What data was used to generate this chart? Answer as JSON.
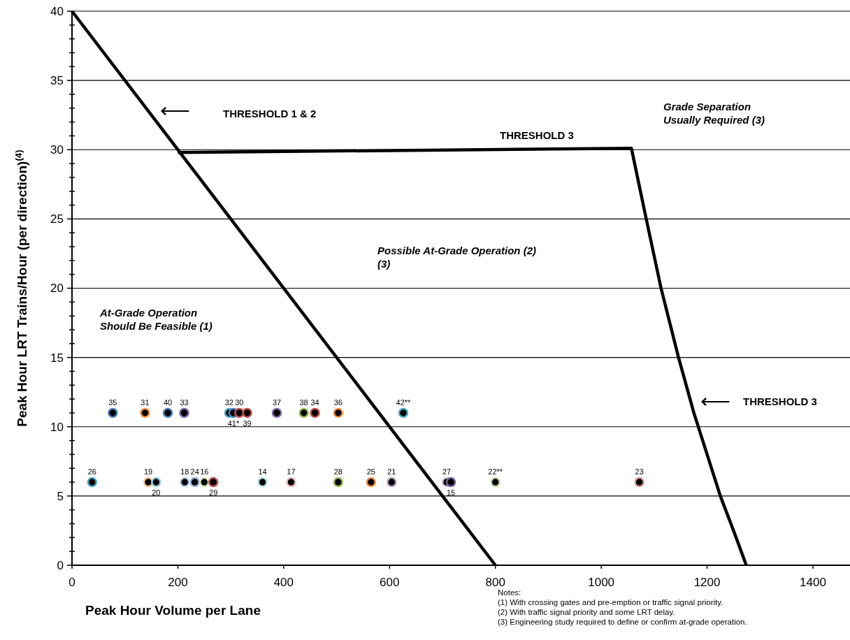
{
  "chart_data": {
    "type": "scatter",
    "xlabel": "Peak Hour Volume per Lane",
    "ylabel": "Peak Hour LRT Trains/Hour  (per direction)$^{(4)}$",
    "xlim": [
      0,
      1470
    ],
    "ylim": [
      0,
      40
    ],
    "xticks": [
      0,
      200,
      400,
      600,
      800,
      1000,
      1200,
      1400
    ],
    "yticks": [
      0,
      {
        "value": 1,
        "label": null
      },
      {
        "value": 2,
        "label": null
      },
      {
        "value": 3,
        "label": null
      },
      {
        "value": 4,
        "label": null
      },
      5,
      {
        "value": 6,
        "label": null
      },
      {
        "value": 7,
        "label": null
      },
      {
        "value": 8,
        "label": null
      },
      {
        "value": 9,
        "label": null
      },
      10,
      {
        "value": 11,
        "label": null
      },
      {
        "value": 12,
        "label": null
      },
      {
        "value": 13,
        "label": null
      },
      {
        "value": 14,
        "label": null
      },
      15,
      {
        "value": 16,
        "label": null
      },
      {
        "value": 17,
        "label": null
      },
      {
        "value": 18,
        "label": null
      },
      {
        "value": 19,
        "label": null
      },
      20,
      {
        "value": 21,
        "label": null
      },
      {
        "value": 22,
        "label": null
      },
      {
        "value": 23,
        "label": null
      },
      {
        "value": 24,
        "label": null
      },
      25,
      {
        "value": 26,
        "label": null
      },
      {
        "value": 27,
        "label": null
      },
      {
        "value": 28,
        "label": null
      },
      {
        "value": 29,
        "label": null
      },
      30,
      {
        "value": 31,
        "label": null
      },
      {
        "value": 32,
        "label": null
      },
      {
        "value": 33,
        "label": null
      },
      {
        "value": 34,
        "label": null
      },
      35,
      {
        "value": 36,
        "label": null
      },
      {
        "value": 37,
        "label": null
      },
      {
        "value": 38,
        "label": null
      },
      {
        "value": 39,
        "label": null
      },
      40
    ],
    "grid": "y",
    "series": [
      {
        "type": "line",
        "color": "#000000",
        "marker": "none",
        "x": [
          0,
          800
        ],
        "values": [
          40,
          0
        ]
      },
      {
        "type": "line",
        "color": "#000000",
        "marker": "none",
        "x": [
          200,
          1057,
          1085,
          1113,
          1146,
          1175,
          1200,
          1225,
          1250,
          1274
        ],
        "values": [
          29.8,
          30.1,
          25,
          20,
          15,
          11,
          8,
          5,
          2.5,
          0
        ]
      },
      {
        "marker": "circle",
        "x": [
          77,
          138,
          181,
          212,
          297,
          305,
          316,
          331,
          387,
          438,
          459,
          503,
          626,
          38,
          144,
          159,
          213,
          232,
          250,
          267,
          360,
          414,
          503,
          565,
          604,
          708,
          716,
          800,
          1072
        ],
        "values": [
          11,
          11,
          11,
          11,
          11,
          11,
          11,
          11,
          11,
          11,
          11,
          11,
          11,
          6,
          6,
          6,
          6,
          6,
          6,
          6,
          6,
          6,
          6,
          6,
          6,
          6,
          6,
          6,
          6
        ],
        "colors": [
          "#4f81bd",
          "#f79646",
          "#4f81bd",
          "#8064a2",
          "#4bacc6",
          "#4f81bd",
          "#c0504d",
          "#c0504d",
          "#8064a2",
          "#9bbb59",
          "#c0504d",
          "#f79646",
          "#4bacc6",
          "#4bacc6",
          "#fac090",
          "#93cddd",
          "#b9cde5",
          "#95b3d7",
          "#d7e4bd",
          "#c0504d",
          "#b7dee8",
          "#e6b9b8",
          "#9bbb59",
          "#f79646",
          "#b3a2c7",
          "#ccc1da",
          "#8064a2",
          "#c3d69b",
          "#d99694"
        ]
      }
    ],
    "annotations": [
      "⟵",
      "THRESHOLD 1 & 2",
      "THRESHOLD 3",
      "Grade Separation\nUsually Required (3)",
      "Possible At-Grade Operation (2)\n(3)",
      "At-Grade Operation\nShould Be Feasible (1)",
      "⟵",
      "THRESHOLD 3",
      "Notes:",
      "(1) With crossing gates and pre-emption or traffic signal priority.",
      "(2) With traffic signal priority and some LRT delay.",
      "(3) Engineering study required to define or confirm at-grade operation.",
      {
        "text": "35",
        "x": 77,
        "y": 11
      },
      {
        "text": "31",
        "x": 138,
        "y": 11
      },
      {
        "text": "40",
        "x": 181,
        "y": 11
      },
      {
        "text": "33",
        "x": 212,
        "y": 11
      },
      {
        "text": "32",
        "x": 297,
        "y": 11
      },
      {
        "text": "41*",
        "x": 305,
        "y": 11
      },
      {
        "text": "30",
        "x": 316,
        "y": 11
      },
      {
        "text": "39",
        "x": 331,
        "y": 11
      },
      {
        "text": "37",
        "x": 387,
        "y": 11
      },
      {
        "text": "38",
        "x": 438,
        "y": 11
      },
      {
        "text": "34",
        "x": 459,
        "y": 11
      },
      {
        "text": "36",
        "x": 503,
        "y": 11
      },
      {
        "text": "42**",
        "x": 626,
        "y": 11
      },
      {
        "text": "26",
        "x": 38,
        "y": 6
      },
      {
        "text": "19",
        "x": 144,
        "y": 6
      },
      {
        "text": "20",
        "x": 159,
        "y": 6
      },
      {
        "text": "18",
        "x": 213,
        "y": 6
      },
      {
        "text": "24",
        "x": 232,
        "y": 6
      },
      {
        "text": "16",
        "x": 250,
        "y": 6
      },
      {
        "text": "29",
        "x": 267,
        "y": 6
      },
      {
        "text": "14",
        "x": 360,
        "y": 6
      },
      {
        "text": "17",
        "x": 414,
        "y": 6
      },
      {
        "text": "28",
        "x": 503,
        "y": 6
      },
      {
        "text": "25",
        "x": 565,
        "y": 6
      },
      {
        "text": "21",
        "x": 604,
        "y": 6
      },
      {
        "text": "27",
        "x": 708,
        "y": 6
      },
      {
        "text": "15",
        "x": 716,
        "y": 6
      },
      {
        "text": "22**",
        "x": 800,
        "y": 6
      },
      {
        "text": "23",
        "x": 1072,
        "y": 6
      }
    ]
  }
}
